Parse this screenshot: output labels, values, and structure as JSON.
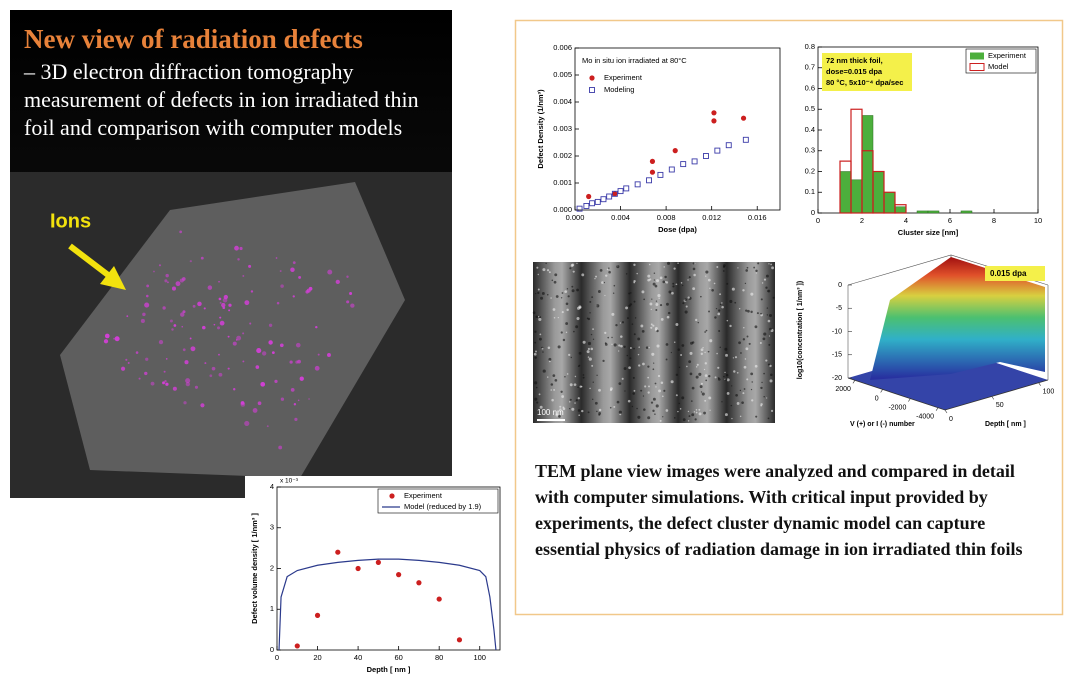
{
  "left_panel": {
    "title": "New view of radiation defects",
    "body": "– 3D electron diffraction tomography measurement of defects in ion irradiated thin foil and comparison with computer models",
    "arrow_label": "Ions"
  },
  "dose_chart": {
    "type": "scatter",
    "title": "Mo in situ ion irradiated at 80°C",
    "x_label": "Dose (dpa)",
    "y_label": "Defect Density (1/nm³)",
    "xlim": [
      0,
      0.018
    ],
    "ylim": [
      0,
      0.006
    ],
    "xticks": [
      {
        "value": 0,
        "label": "0.000"
      },
      {
        "value": 0.004,
        "label": "0.004"
      },
      {
        "value": 0.008,
        "label": "0.008"
      },
      {
        "value": 0.012,
        "label": "0.012"
      },
      {
        "value": 0.016,
        "label": "0.016"
      }
    ],
    "yticks": [
      {
        "value": 0,
        "label": "0.000"
      },
      {
        "value": 0.001,
        "label": "0.001"
      },
      {
        "value": 0.002,
        "label": "0.002"
      },
      {
        "value": 0.003,
        "label": "0.003"
      },
      {
        "value": 0.004,
        "label": "0.004"
      },
      {
        "value": 0.005,
        "label": "0.005"
      },
      {
        "value": 0.006,
        "label": "0.006"
      }
    ],
    "series": [
      {
        "name": "Experiment",
        "color": "#cc1f1f",
        "marker": "circle",
        "x": [
          0.0012,
          0.0035,
          0.0068,
          0.0068,
          0.0088,
          0.0122,
          0.0122,
          0.0148
        ],
        "values": [
          0.0005,
          0.0006,
          0.0014,
          0.0018,
          0.0022,
          0.0033,
          0.0036,
          0.0034
        ]
      },
      {
        "name": "Modeling",
        "color": "#3a3aa8",
        "marker": "square",
        "x": [
          0.0004,
          0.001,
          0.0015,
          0.002,
          0.0025,
          0.003,
          0.0035,
          0.004,
          0.0045,
          0.0055,
          0.0065,
          0.0075,
          0.0085,
          0.0095,
          0.0105,
          0.0115,
          0.0125,
          0.0135,
          0.015
        ],
        "values": [
          5e-05,
          0.00015,
          0.00025,
          0.0003,
          0.0004,
          0.0005,
          0.0006,
          0.0007,
          0.0008,
          0.00095,
          0.0011,
          0.0013,
          0.0015,
          0.0017,
          0.0018,
          0.002,
          0.0022,
          0.0024,
          0.0026
        ]
      }
    ]
  },
  "cluster_chart": {
    "type": "histogram",
    "annotation": [
      "72 nm thick foil,",
      "dose=0.015 dpa",
      "80 °C, 5x10⁻⁴ dpa/sec"
    ],
    "x_label": "Cluster size [nm]",
    "xlim": [
      0,
      10
    ],
    "ylim": [
      0,
      0.8
    ],
    "xticks": [
      0,
      2,
      4,
      6,
      8,
      10
    ],
    "yticks": [
      0,
      0.1,
      0.2,
      0.3,
      0.4,
      0.5,
      0.6,
      0.7,
      0.8
    ],
    "bins": [
      1,
      1.5,
      2,
      2.5,
      3,
      3.5,
      4,
      4.5,
      5,
      5.5,
      6,
      6.5,
      7
    ],
    "series": [
      {
        "name": "Experiment",
        "color": "#4caf3c",
        "style": "filled",
        "values": [
          0.2,
          0.16,
          0.47,
          0.2,
          0.1,
          0.03,
          0,
          0.01,
          0.01,
          0,
          0,
          0.01
        ]
      },
      {
        "name": "Model",
        "color": "#cc1f1f",
        "style": "outline",
        "values": [
          0.25,
          0.5,
          0.3,
          0.2,
          0.1,
          0.04,
          0,
          0,
          0,
          0,
          0,
          0
        ]
      }
    ]
  },
  "tem_image": {
    "scale_label": "100 nm"
  },
  "surface_plot": {
    "annotation": "0.015 dpa",
    "z_label": "log10(concentration [ 1/nm³ ])",
    "v_label": "V (+) or I (-) number",
    "depth_label": "Depth [ nm ]",
    "zlim": [
      -20,
      0
    ],
    "zticks": [
      0,
      -5,
      -10,
      -15,
      -20
    ],
    "vlim": [
      2500,
      -4500
    ],
    "vticks": [
      2000,
      0,
      -2000,
      -4000
    ],
    "depthlim": [
      0,
      110
    ],
    "depthticks": [
      0,
      50,
      100
    ]
  },
  "depth_chart": {
    "type": "scatter",
    "y_multiplier": "x 10⁻³",
    "x_label": "Depth   [ nm ]",
    "y_label": "Defect volume density  [ 1/nm³ ]",
    "xlim": [
      0,
      110
    ],
    "ylim": [
      0,
      4
    ],
    "xticks": [
      0,
      20,
      40,
      60,
      80,
      100
    ],
    "yticks": [
      0,
      1,
      2,
      3,
      4
    ],
    "series": [
      {
        "name": "Experiment",
        "color": "#cc1f1f",
        "marker": "circle",
        "x": [
          10,
          20,
          30,
          40,
          50,
          60,
          70,
          80,
          90
        ],
        "values": [
          0.1,
          0.85,
          2.4,
          2.0,
          2.15,
          1.85,
          1.65,
          1.25,
          0.25
        ]
      },
      {
        "name": "Model (reduced by 1.9)",
        "color": "#2b3a8c",
        "marker": "line",
        "x": [
          1,
          2,
          5,
          10,
          20,
          30,
          40,
          50,
          60,
          70,
          80,
          90,
          100,
          103,
          105,
          107,
          108
        ],
        "values": [
          0,
          1.3,
          1.8,
          1.95,
          2.08,
          2.15,
          2.2,
          2.23,
          2.23,
          2.2,
          2.15,
          2.08,
          1.95,
          1.8,
          1.3,
          0.5,
          0
        ]
      }
    ]
  },
  "summary": "TEM plane view images were analyzed and compared in detail with computer simulations. With critical input provided by experiments, the defect cluster dynamic model can capture essential physics of radiation damage in ion irradiated thin foils"
}
